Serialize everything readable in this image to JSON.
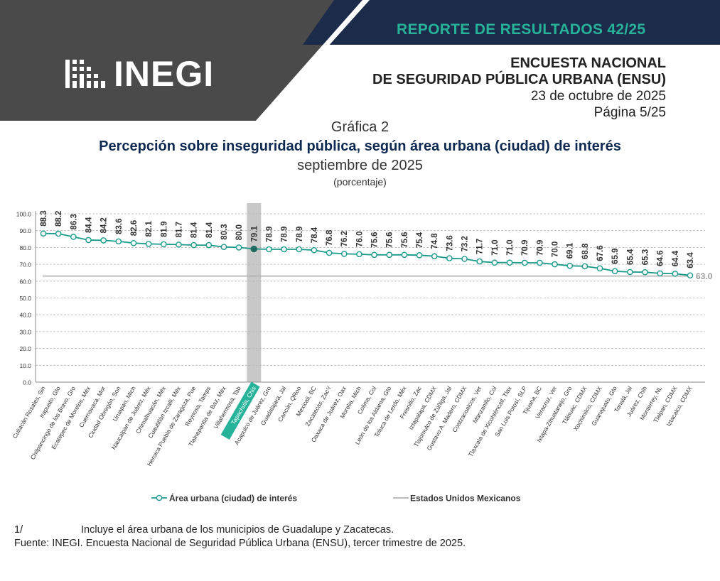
{
  "header": {
    "logo_text": "INEGI",
    "report_title": "REPORTE DE RESULTADOS 42/25",
    "survey_line1": "ENCUESTA NACIONAL",
    "survey_line2": "DE SEGURIDAD PÚBLICA URBANA (ENSU)",
    "date": "23 de octubre de 2025",
    "page": "Página 5/25",
    "colors": {
      "dark_gray": "#4a4a4a",
      "navy": "#1c2b4a",
      "accent": "#27b39a",
      "teal_series": "#1a9a8a"
    }
  },
  "chart_title": {
    "number": "Gráfica 2",
    "title": "Percepción sobre inseguridad pública, según área urbana (ciudad) de interés",
    "subtitle": "septiembre de 2025",
    "units": "(porcentaje)"
  },
  "chart_data": {
    "type": "line",
    "categories": [
      "Culiacán Rosales, Sin",
      "Irapuato, Gto",
      "Chilpancingo de los Bravo, Gro",
      "Ecatepec de Morelos, Méx",
      "Cuernavaca, Mor",
      "Ciudad Obregón, Son",
      "Uruapan, Mich",
      "Naucalpan de Juárez, Méx",
      "Chimalhuacán, Méx",
      "Cuautitlán Izcalli, Méx",
      "Heroica Puebla de Zaragoza, Pue",
      "Reynosa, Tamps",
      "Tlalnepantla de Baz, Méx",
      "Villahermosa, Tab",
      "Tapachula, Chis",
      "Acapulco de Juárez, Gro",
      "Guadalajara, Jal",
      "Cancún, QRoo",
      "Mexicali, BC",
      "Zacatecas, Zac¹/",
      "Oaxaca de Juárez, Oax",
      "Morelia, Mich",
      "Colima, Col",
      "León de los Aldama, Gto",
      "Toluca de Lerdo, Méx",
      "Fresnillo, Zac",
      "Iztapalapa, CDMX",
      "Tlajomulco de Zúñiga, Jal",
      "Gustavo A. Madero, CDMX",
      "Coatzacoalcos, Ver",
      "Manzanillo, Col",
      "Tlaxcala de Xicohténcatl, Tlax",
      "San Luis Potosí, SLP",
      "Tijuana, BC",
      "Veracruz, Ver",
      "Ixtapa-Zihuatanejo, Gro",
      "Tláhuac, CDMX",
      "Xochimilco, CDMX",
      "Guanajuato, Gto",
      "Tonalá, Jal",
      "Juárez, Chih",
      "Monterrey, NL",
      "Tlalpan, CDMX",
      "Iztacalco, CDMX"
    ],
    "series": [
      {
        "name": "Área urbana (ciudad) de interés",
        "values": [
          88.3,
          88.2,
          86.3,
          84.4,
          84.2,
          83.6,
          82.6,
          82.1,
          81.9,
          81.7,
          81.4,
          81.4,
          80.3,
          80.0,
          79.1,
          78.9,
          78.9,
          78.9,
          78.4,
          76.8,
          76.2,
          76.0,
          75.6,
          75.6,
          75.6,
          75.4,
          74.8,
          73.6,
          73.2,
          71.7,
          71.0,
          71.0,
          70.9,
          70.9,
          70.0,
          69.1,
          68.8,
          67.6,
          65.9,
          65.4,
          65.3,
          64.6,
          64.4,
          63.4
        ]
      }
    ],
    "value_labels": [
      "88.3",
      "88.2",
      "86.3",
      "84.4",
      "84.2",
      "83.6",
      "82.6",
      "82.1",
      "81.9",
      "81.7",
      "81.4",
      "81.4",
      "80.3",
      "80.0",
      "79.1",
      "78.9",
      "78.9",
      "78.9",
      "78.4",
      "76.8",
      "76.2",
      "76.0",
      "75.6",
      "75.6",
      "75.6",
      "75.4",
      "74.8",
      "73.6",
      "73.2",
      "71.7",
      "71.0",
      "71.0",
      "70.9",
      "70.9",
      "70.0",
      "69.1",
      "68.8",
      "67.6",
      "65.9",
      "65.4",
      "65.3",
      "64.6",
      "64.4",
      "63.4"
    ],
    "highlight_index": 14,
    "reference": {
      "name": "Estados Unidos Mexicanos",
      "value": 63.0,
      "label": "63.0"
    },
    "y_ticks": [
      "0.0",
      "10.0",
      "20.0",
      "30.0",
      "40.0",
      "50.0",
      "60.0",
      "70.0",
      "80.0",
      "90.0",
      "100.0"
    ],
    "ylim": [
      0,
      100
    ],
    "grid": true,
    "legend_position": "bottom"
  },
  "footnotes": {
    "note_mark": "1/",
    "note_text": "Incluye el área urbana de los municipios de Guadalupe y Zacatecas.",
    "source": "Fuente: INEGI. Encuesta Nacional de Seguridad Pública Urbana (ENSU), tercer trimestre de 2025."
  }
}
